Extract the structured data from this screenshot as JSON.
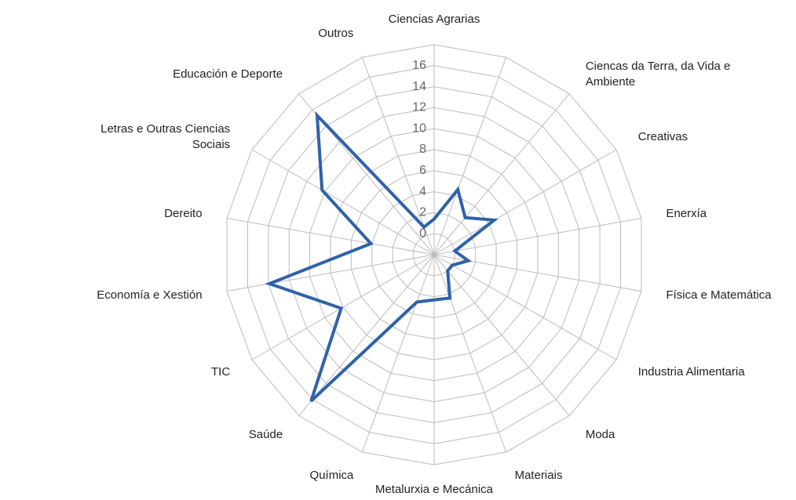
{
  "chart_data": {
    "type": "radar",
    "categories": [
      "Ciencias Agrarias",
      null,
      "Ciencas da Terra, da Vida e Ambiente",
      "Creativas",
      "Enerxía",
      "Física e Matemática",
      "Industria Alimentaria",
      "Moda",
      "Materiais",
      "Metalurxia e Mecánica",
      "Química",
      "Saúde",
      "TIC",
      "Economía e Xestión",
      "Dereito",
      "Letras e Outras Ciencias Sociais",
      "Educación e Deporte",
      "Outros"
    ],
    "values": [
      1.4,
      4.6,
      2.6,
      4.6,
      0,
      1.3,
      0,
      0,
      2.4,
      2.3,
      2.8,
      16.2,
      8.2,
      13.9,
      4.1,
      10.3,
      15.3,
      0.8
    ],
    "color": "#2f62a8",
    "ylim": [
      -2,
      18
    ],
    "yticks": [
      0,
      2,
      4,
      6,
      8,
      10,
      12,
      14,
      16
    ],
    "grid": true
  }
}
